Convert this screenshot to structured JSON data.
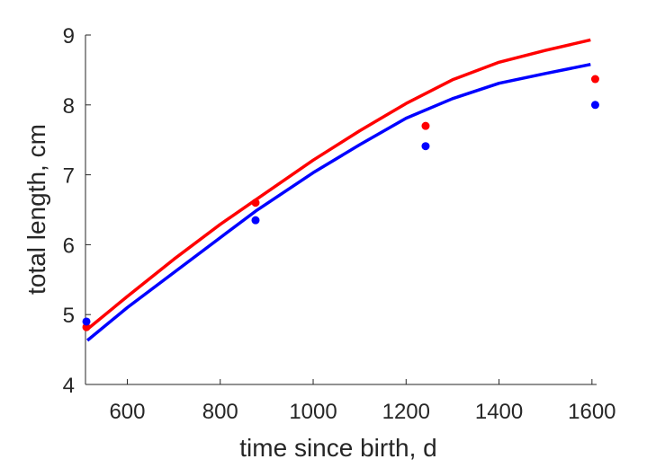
{
  "chart_data": {
    "type": "scatter",
    "title": "",
    "xlabel": "time since birth, d",
    "ylabel": "total length, cm",
    "xlim": [
      510,
      1610
    ],
    "ylim": [
      4,
      9
    ],
    "xticks": [
      600,
      800,
      1000,
      1200,
      1400,
      1600
    ],
    "yticks": [
      4,
      5,
      6,
      7,
      8,
      9
    ],
    "grid": false,
    "legend": null,
    "series": [
      {
        "type": "scatter",
        "color": "#ff0000",
        "points": [
          [
            512,
            4.82
          ],
          [
            876,
            6.6
          ],
          [
            1242,
            7.7
          ],
          [
            1607,
            8.37
          ]
        ]
      },
      {
        "type": "scatter",
        "color": "#0000ff",
        "points": [
          [
            512,
            4.9
          ],
          [
            876,
            6.35
          ],
          [
            1242,
            7.41
          ],
          [
            1607,
            8.0
          ]
        ]
      },
      {
        "type": "line",
        "color": "#ff0000",
        "points": [
          [
            514,
            4.79
          ],
          [
            600,
            5.26
          ],
          [
            700,
            5.79
          ],
          [
            800,
            6.29
          ],
          [
            876,
            6.64
          ],
          [
            1000,
            7.21
          ],
          [
            1100,
            7.63
          ],
          [
            1200,
            8.02
          ],
          [
            1300,
            8.36
          ],
          [
            1400,
            8.61
          ],
          [
            1500,
            8.78
          ],
          [
            1597,
            8.93
          ]
        ]
      },
      {
        "type": "line",
        "color": "#0000ff",
        "points": [
          [
            514,
            4.63
          ],
          [
            600,
            5.1
          ],
          [
            700,
            5.6
          ],
          [
            800,
            6.1
          ],
          [
            876,
            6.48
          ],
          [
            1000,
            7.03
          ],
          [
            1100,
            7.43
          ],
          [
            1200,
            7.81
          ],
          [
            1300,
            8.09
          ],
          [
            1400,
            8.31
          ],
          [
            1500,
            8.45
          ],
          [
            1597,
            8.58
          ]
        ]
      }
    ]
  }
}
